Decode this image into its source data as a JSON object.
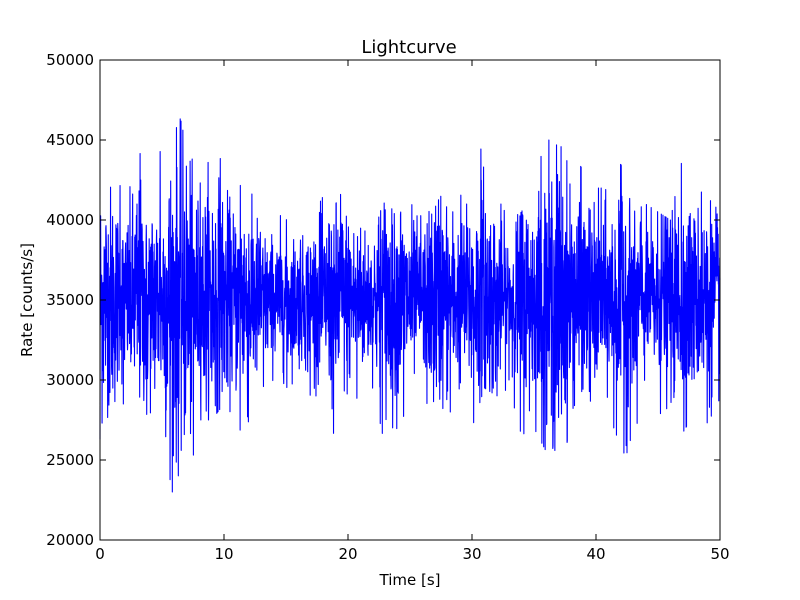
{
  "chart_data": {
    "type": "line",
    "title": "Lightcurve",
    "xlabel": "Time [s]",
    "ylabel": "Rate [counts/s]",
    "xlim": [
      0,
      50
    ],
    "ylim": [
      20000,
      50000
    ],
    "x_ticks": [
      "0",
      "10",
      "20",
      "30",
      "40",
      "50"
    ],
    "y_ticks": [
      "20000",
      "25000",
      "30000",
      "35000",
      "40000",
      "45000",
      "50000"
    ],
    "grid": false,
    "legend": "none",
    "series": [
      {
        "color": "#0000ff",
        "x": [
          0,
          1,
          2,
          3,
          4,
          5,
          6,
          7,
          8,
          9,
          10,
          11,
          12,
          13,
          14,
          15,
          16,
          17,
          18,
          19,
          20,
          21,
          22,
          23,
          24,
          25,
          26,
          27,
          28,
          29,
          30,
          31,
          32,
          33,
          34,
          35,
          36,
          37,
          38,
          39,
          40,
          41,
          42,
          43,
          44,
          45,
          46,
          47,
          48,
          49,
          50
        ],
        "upper": [
          45000,
          44000,
          41000,
          44500,
          43000,
          44500,
          47300,
          45200,
          42000,
          45800,
          43000,
          42000,
          42500,
          39000,
          40000,
          40500,
          38500,
          40000,
          41500,
          41000,
          42500,
          39500,
          39000,
          41500,
          40000,
          42000,
          40000,
          41000,
          42000,
          41500,
          42000,
          45400,
          41500,
          40000,
          40500,
          42500,
          45100,
          44600,
          44500,
          43000,
          42000,
          42000,
          43500,
          40500,
          41000,
          40500,
          40000,
          44000,
          41500,
          42000,
          41000
        ],
        "lower": [
          26300,
          28500,
          28500,
          29000,
          27500,
          26500,
          22300,
          22800,
          27500,
          27500,
          28500,
          27500,
          25400,
          29500,
          30000,
          29500,
          30000,
          29000,
          29000,
          26200,
          28500,
          29000,
          29500,
          25800,
          27000,
          28500,
          30000,
          26000,
          27500,
          29500,
          27000,
          29500,
          29000,
          29500,
          26500,
          27000,
          25500,
          22300,
          28000,
          29500,
          28000,
          29000,
          24400,
          26500,
          29000,
          28000,
          27500,
          26700,
          28000,
          27300,
          28000
        ],
        "mean": 35000
      }
    ]
  }
}
